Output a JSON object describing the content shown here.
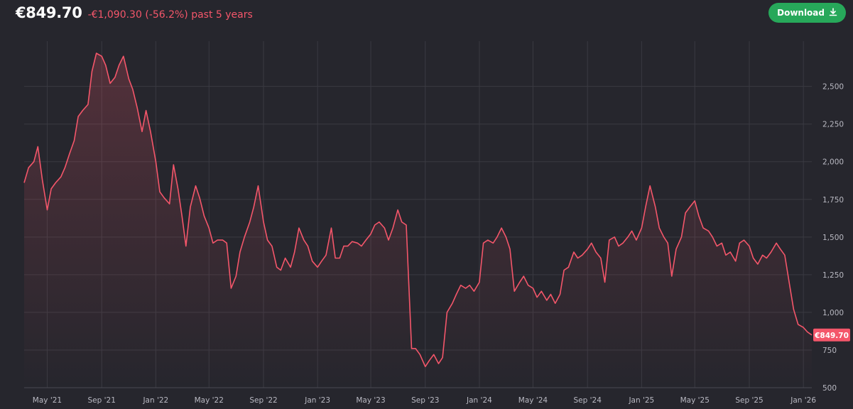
{
  "header": {
    "price": "€849.70",
    "change_text": "-€1,090.30 (-56.2%) past 5 years",
    "download_label": "Download",
    "download_icon": "download-icon"
  },
  "colors": {
    "background": "#26262d",
    "line": "#f4566a",
    "grid": "#3a3a42",
    "button": "#27a85a",
    "last_price_badge": "#f4566a"
  },
  "chart_data": {
    "type": "area",
    "title": "",
    "xlabel": "",
    "ylabel": "",
    "x_ticks": [
      "May '21",
      "Sep '21",
      "Jan '22",
      "May '22",
      "Sep '22",
      "Jan '23",
      "May '23",
      "Sep '23",
      "Jan '24",
      "May '24",
      "Sep '24",
      "Jan '25",
      "May '25",
      "Sep '25",
      "Jan '26"
    ],
    "y_ticks": [
      500,
      750,
      1000,
      1250,
      1500,
      1750,
      2000,
      2250,
      2500
    ],
    "y_tick_labels": [
      "500",
      "750",
      "1,000",
      "1,250",
      "1,500",
      "1,750",
      "2,000",
      "2,250",
      "2,500"
    ],
    "ylim": [
      500,
      2800
    ],
    "grid": true,
    "last_value_label": "€849.70",
    "series": [
      {
        "values": [
          [
            "2021-03-10",
            1860
          ],
          [
            "2021-03-20",
            1960
          ],
          [
            "2021-04-01",
            2000
          ],
          [
            "2021-04-10",
            2100
          ],
          [
            "2021-04-20",
            1880
          ],
          [
            "2021-05-01",
            1680
          ],
          [
            "2021-05-10",
            1820
          ],
          [
            "2021-05-20",
            1860
          ],
          [
            "2021-06-01",
            1900
          ],
          [
            "2021-06-10",
            1960
          ],
          [
            "2021-06-20",
            2050
          ],
          [
            "2021-07-01",
            2140
          ],
          [
            "2021-07-10",
            2300
          ],
          [
            "2021-07-20",
            2340
          ],
          [
            "2021-08-01",
            2380
          ],
          [
            "2021-08-10",
            2600
          ],
          [
            "2021-08-20",
            2720
          ],
          [
            "2021-09-01",
            2700
          ],
          [
            "2021-09-10",
            2640
          ],
          [
            "2021-09-20",
            2520
          ],
          [
            "2021-10-01",
            2560
          ],
          [
            "2021-10-10",
            2640
          ],
          [
            "2021-10-20",
            2700
          ],
          [
            "2021-11-01",
            2550
          ],
          [
            "2021-11-10",
            2480
          ],
          [
            "2021-11-20",
            2360
          ],
          [
            "2021-12-01",
            2200
          ],
          [
            "2021-12-10",
            2340
          ],
          [
            "2021-12-20",
            2200
          ],
          [
            "2022-01-01",
            2000
          ],
          [
            "2022-01-10",
            1800
          ],
          [
            "2022-01-20",
            1760
          ],
          [
            "2022-02-01",
            1720
          ],
          [
            "2022-02-10",
            1980
          ],
          [
            "2022-02-20",
            1820
          ],
          [
            "2022-03-01",
            1640
          ],
          [
            "2022-03-10",
            1440
          ],
          [
            "2022-03-20",
            1700
          ],
          [
            "2022-04-01",
            1840
          ],
          [
            "2022-04-10",
            1760
          ],
          [
            "2022-04-20",
            1640
          ],
          [
            "2022-05-01",
            1560
          ],
          [
            "2022-05-10",
            1460
          ],
          [
            "2022-05-20",
            1480
          ],
          [
            "2022-06-01",
            1480
          ],
          [
            "2022-06-10",
            1460
          ],
          [
            "2022-06-20",
            1160
          ],
          [
            "2022-07-01",
            1240
          ],
          [
            "2022-07-10",
            1400
          ],
          [
            "2022-07-20",
            1500
          ],
          [
            "2022-08-01",
            1600
          ],
          [
            "2022-08-10",
            1700
          ],
          [
            "2022-08-20",
            1840
          ],
          [
            "2022-09-01",
            1600
          ],
          [
            "2022-09-10",
            1480
          ],
          [
            "2022-09-20",
            1440
          ],
          [
            "2022-10-01",
            1300
          ],
          [
            "2022-10-10",
            1280
          ],
          [
            "2022-10-20",
            1360
          ],
          [
            "2022-11-01",
            1300
          ],
          [
            "2022-11-10",
            1400
          ],
          [
            "2022-11-20",
            1560
          ],
          [
            "2022-12-01",
            1480
          ],
          [
            "2022-12-10",
            1440
          ],
          [
            "2022-12-20",
            1340
          ],
          [
            "2023-01-01",
            1300
          ],
          [
            "2023-01-10",
            1340
          ],
          [
            "2023-01-20",
            1380
          ],
          [
            "2023-02-01",
            1560
          ],
          [
            "2023-02-10",
            1360
          ],
          [
            "2023-02-20",
            1360
          ],
          [
            "2023-03-01",
            1440
          ],
          [
            "2023-03-10",
            1440
          ],
          [
            "2023-03-20",
            1470
          ],
          [
            "2023-04-01",
            1460
          ],
          [
            "2023-04-10",
            1440
          ],
          [
            "2023-04-20",
            1480
          ],
          [
            "2023-05-01",
            1520
          ],
          [
            "2023-05-10",
            1580
          ],
          [
            "2023-05-20",
            1600
          ],
          [
            "2023-06-01",
            1560
          ],
          [
            "2023-06-10",
            1480
          ],
          [
            "2023-06-20",
            1560
          ],
          [
            "2023-07-01",
            1680
          ],
          [
            "2023-07-10",
            1600
          ],
          [
            "2023-07-20",
            1580
          ],
          [
            "2023-08-01",
            760
          ],
          [
            "2023-08-10",
            760
          ],
          [
            "2023-08-20",
            720
          ],
          [
            "2023-09-01",
            640
          ],
          [
            "2023-09-10",
            680
          ],
          [
            "2023-09-20",
            720
          ],
          [
            "2023-10-01",
            660
          ],
          [
            "2023-10-10",
            700
          ],
          [
            "2023-10-20",
            1000
          ],
          [
            "2023-11-01",
            1060
          ],
          [
            "2023-11-10",
            1120
          ],
          [
            "2023-11-20",
            1180
          ],
          [
            "2023-12-01",
            1160
          ],
          [
            "2023-12-10",
            1180
          ],
          [
            "2023-12-20",
            1140
          ],
          [
            "2024-01-01",
            1200
          ],
          [
            "2024-01-10",
            1460
          ],
          [
            "2024-01-20",
            1480
          ],
          [
            "2024-02-01",
            1460
          ],
          [
            "2024-02-10",
            1500
          ],
          [
            "2024-02-20",
            1560
          ],
          [
            "2024-03-01",
            1500
          ],
          [
            "2024-03-10",
            1420
          ],
          [
            "2024-03-20",
            1140
          ],
          [
            "2024-04-01",
            1200
          ],
          [
            "2024-04-10",
            1240
          ],
          [
            "2024-04-20",
            1180
          ],
          [
            "2024-05-01",
            1160
          ],
          [
            "2024-05-10",
            1100
          ],
          [
            "2024-05-20",
            1140
          ],
          [
            "2024-06-01",
            1080
          ],
          [
            "2024-06-10",
            1120
          ],
          [
            "2024-06-20",
            1060
          ],
          [
            "2024-07-01",
            1120
          ],
          [
            "2024-07-10",
            1280
          ],
          [
            "2024-07-20",
            1300
          ],
          [
            "2024-08-01",
            1400
          ],
          [
            "2024-08-10",
            1360
          ],
          [
            "2024-08-20",
            1380
          ],
          [
            "2024-09-01",
            1420
          ],
          [
            "2024-09-10",
            1460
          ],
          [
            "2024-09-20",
            1400
          ],
          [
            "2024-10-01",
            1360
          ],
          [
            "2024-10-10",
            1200
          ],
          [
            "2024-10-20",
            1480
          ],
          [
            "2024-11-01",
            1500
          ],
          [
            "2024-11-10",
            1440
          ],
          [
            "2024-11-20",
            1460
          ],
          [
            "2024-12-01",
            1500
          ],
          [
            "2024-12-10",
            1540
          ],
          [
            "2024-12-20",
            1480
          ],
          [
            "2025-01-01",
            1560
          ],
          [
            "2025-01-10",
            1700
          ],
          [
            "2025-01-20",
            1840
          ],
          [
            "2025-02-01",
            1700
          ],
          [
            "2025-02-10",
            1560
          ],
          [
            "2025-02-20",
            1500
          ],
          [
            "2025-03-01",
            1460
          ],
          [
            "2025-03-10",
            1240
          ],
          [
            "2025-03-20",
            1420
          ],
          [
            "2025-04-01",
            1500
          ],
          [
            "2025-04-10",
            1660
          ],
          [
            "2025-04-20",
            1700
          ],
          [
            "2025-05-01",
            1740
          ],
          [
            "2025-05-10",
            1640
          ],
          [
            "2025-05-20",
            1560
          ],
          [
            "2025-06-01",
            1540
          ],
          [
            "2025-06-10",
            1500
          ],
          [
            "2025-06-20",
            1440
          ],
          [
            "2025-07-01",
            1460
          ],
          [
            "2025-07-10",
            1380
          ],
          [
            "2025-07-20",
            1400
          ],
          [
            "2025-08-01",
            1340
          ],
          [
            "2025-08-10",
            1460
          ],
          [
            "2025-08-20",
            1480
          ],
          [
            "2025-09-01",
            1440
          ],
          [
            "2025-09-10",
            1360
          ],
          [
            "2025-09-20",
            1320
          ],
          [
            "2025-10-01",
            1380
          ],
          [
            "2025-10-10",
            1360
          ],
          [
            "2025-10-20",
            1400
          ],
          [
            "2025-11-01",
            1460
          ],
          [
            "2025-11-10",
            1420
          ],
          [
            "2025-11-20",
            1380
          ],
          [
            "2025-12-01",
            1180
          ],
          [
            "2025-12-10",
            1020
          ],
          [
            "2025-12-20",
            920
          ],
          [
            "2026-01-01",
            900
          ],
          [
            "2026-01-10",
            870
          ],
          [
            "2026-01-20",
            849.7
          ]
        ]
      }
    ]
  }
}
